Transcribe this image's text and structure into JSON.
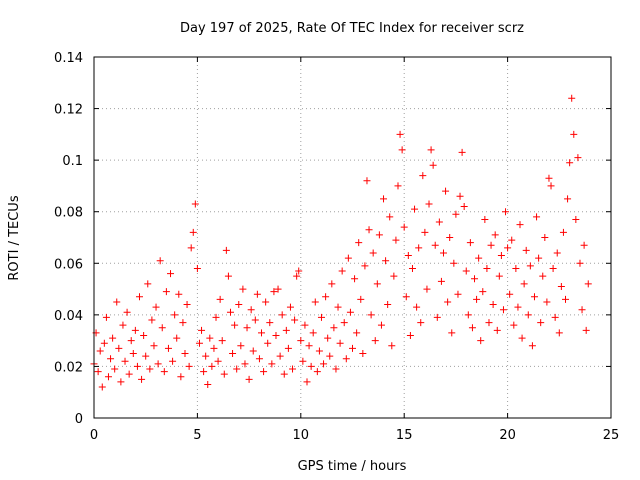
{
  "chart_data": {
    "type": "scatter",
    "title": "Day 197 of 2025, Rate Of TEC Index for receiver scrz",
    "xlabel": "GPS time / hours",
    "ylabel": "ROTI / TECUs",
    "xlim": [
      0,
      25
    ],
    "ylim": [
      0,
      0.14
    ],
    "grid": true,
    "marker": "+",
    "color": "#ff0000",
    "x_ticks": [
      {
        "value": 0,
        "label": "0"
      },
      {
        "value": 5,
        "label": "5"
      },
      {
        "value": 10,
        "label": "10"
      },
      {
        "value": 15,
        "label": "15"
      },
      {
        "value": 20,
        "label": "20"
      },
      {
        "value": 25,
        "label": "25"
      }
    ],
    "y_ticks": [
      {
        "value": 0,
        "label": "0"
      },
      {
        "value": 0.02,
        "label": "0.02"
      },
      {
        "value": 0.04,
        "label": "0.04"
      },
      {
        "value": 0.06,
        "label": "0.06"
      },
      {
        "value": 0.08,
        "label": "0.08"
      },
      {
        "value": 0.1,
        "label": "0.1"
      },
      {
        "value": 0.12,
        "label": "0.12"
      },
      {
        "value": 0.14,
        "label": "0.14"
      }
    ],
    "series": [
      {
        "name": "ROTI",
        "points": [
          [
            0.0,
            0.021
          ],
          [
            0.1,
            0.033
          ],
          [
            0.2,
            0.018
          ],
          [
            0.3,
            0.026
          ],
          [
            0.4,
            0.012
          ],
          [
            0.5,
            0.029
          ],
          [
            0.6,
            0.039
          ],
          [
            0.7,
            0.016
          ],
          [
            0.8,
            0.023
          ],
          [
            0.9,
            0.031
          ],
          [
            1.0,
            0.019
          ],
          [
            1.1,
            0.045
          ],
          [
            1.2,
            0.027
          ],
          [
            1.3,
            0.014
          ],
          [
            1.4,
            0.036
          ],
          [
            1.5,
            0.022
          ],
          [
            1.6,
            0.041
          ],
          [
            1.7,
            0.017
          ],
          [
            1.8,
            0.03
          ],
          [
            1.9,
            0.025
          ],
          [
            2.0,
            0.034
          ],
          [
            2.1,
            0.02
          ],
          [
            2.2,
            0.047
          ],
          [
            2.3,
            0.015
          ],
          [
            2.4,
            0.032
          ],
          [
            2.5,
            0.024
          ],
          [
            2.6,
            0.052
          ],
          [
            2.7,
            0.019
          ],
          [
            2.8,
            0.038
          ],
          [
            2.9,
            0.028
          ],
          [
            3.0,
            0.043
          ],
          [
            3.1,
            0.021
          ],
          [
            3.2,
            0.061
          ],
          [
            3.3,
            0.035
          ],
          [
            3.4,
            0.018
          ],
          [
            3.5,
            0.049
          ],
          [
            3.6,
            0.027
          ],
          [
            3.7,
            0.056
          ],
          [
            3.8,
            0.022
          ],
          [
            3.9,
            0.04
          ],
          [
            4.0,
            0.031
          ],
          [
            4.1,
            0.048
          ],
          [
            4.2,
            0.016
          ],
          [
            4.3,
            0.037
          ],
          [
            4.4,
            0.025
          ],
          [
            4.5,
            0.044
          ],
          [
            4.6,
            0.02
          ],
          [
            4.7,
            0.066
          ],
          [
            4.8,
            0.072
          ],
          [
            4.9,
            0.083
          ],
          [
            5.0,
            0.058
          ],
          [
            5.1,
            0.029
          ],
          [
            5.2,
            0.034
          ],
          [
            5.3,
            0.018
          ],
          [
            5.4,
            0.024
          ],
          [
            5.5,
            0.013
          ],
          [
            5.6,
            0.031
          ],
          [
            5.7,
            0.02
          ],
          [
            5.8,
            0.027
          ],
          [
            5.9,
            0.039
          ],
          [
            6.0,
            0.022
          ],
          [
            6.1,
            0.046
          ],
          [
            6.2,
            0.03
          ],
          [
            6.3,
            0.017
          ],
          [
            6.4,
            0.065
          ],
          [
            6.5,
            0.055
          ],
          [
            6.6,
            0.041
          ],
          [
            6.7,
            0.025
          ],
          [
            6.8,
            0.036
          ],
          [
            6.9,
            0.019
          ],
          [
            7.0,
            0.044
          ],
          [
            7.1,
            0.028
          ],
          [
            7.2,
            0.05
          ],
          [
            7.3,
            0.021
          ],
          [
            7.4,
            0.035
          ],
          [
            7.5,
            0.015
          ],
          [
            7.6,
            0.042
          ],
          [
            7.7,
            0.026
          ],
          [
            7.8,
            0.038
          ],
          [
            7.9,
            0.048
          ],
          [
            8.0,
            0.023
          ],
          [
            8.1,
            0.033
          ],
          [
            8.2,
            0.018
          ],
          [
            8.3,
            0.045
          ],
          [
            8.4,
            0.029
          ],
          [
            8.5,
            0.037
          ],
          [
            8.6,
            0.021
          ],
          [
            8.7,
            0.049
          ],
          [
            8.8,
            0.032
          ],
          [
            8.9,
            0.05
          ],
          [
            9.0,
            0.024
          ],
          [
            9.1,
            0.04
          ],
          [
            9.2,
            0.017
          ],
          [
            9.3,
            0.034
          ],
          [
            9.4,
            0.027
          ],
          [
            9.5,
            0.043
          ],
          [
            9.6,
            0.019
          ],
          [
            9.7,
            0.038
          ],
          [
            9.8,
            0.055
          ],
          [
            9.9,
            0.057
          ],
          [
            10.0,
            0.03
          ],
          [
            10.1,
            0.022
          ],
          [
            10.2,
            0.036
          ],
          [
            10.3,
            0.014
          ],
          [
            10.4,
            0.028
          ],
          [
            10.5,
            0.02
          ],
          [
            10.6,
            0.033
          ],
          [
            10.7,
            0.045
          ],
          [
            10.8,
            0.018
          ],
          [
            10.9,
            0.026
          ],
          [
            11.0,
            0.039
          ],
          [
            11.1,
            0.021
          ],
          [
            11.2,
            0.047
          ],
          [
            11.3,
            0.031
          ],
          [
            11.4,
            0.024
          ],
          [
            11.5,
            0.052
          ],
          [
            11.6,
            0.035
          ],
          [
            11.7,
            0.019
          ],
          [
            11.8,
            0.043
          ],
          [
            11.9,
            0.029
          ],
          [
            12.0,
            0.057
          ],
          [
            12.1,
            0.037
          ],
          [
            12.2,
            0.023
          ],
          [
            12.3,
            0.062
          ],
          [
            12.4,
            0.041
          ],
          [
            12.5,
            0.027
          ],
          [
            12.6,
            0.054
          ],
          [
            12.7,
            0.033
          ],
          [
            12.8,
            0.068
          ],
          [
            12.9,
            0.046
          ],
          [
            13.0,
            0.025
          ],
          [
            13.1,
            0.059
          ],
          [
            13.2,
            0.092
          ],
          [
            13.3,
            0.073
          ],
          [
            13.4,
            0.04
          ],
          [
            13.5,
            0.064
          ],
          [
            13.6,
            0.03
          ],
          [
            13.7,
            0.052
          ],
          [
            13.8,
            0.071
          ],
          [
            13.9,
            0.036
          ],
          [
            14.0,
            0.085
          ],
          [
            14.1,
            0.061
          ],
          [
            14.2,
            0.044
          ],
          [
            14.3,
            0.078
          ],
          [
            14.4,
            0.028
          ],
          [
            14.5,
            0.055
          ],
          [
            14.6,
            0.069
          ],
          [
            14.7,
            0.09
          ],
          [
            14.8,
            0.11
          ],
          [
            14.9,
            0.104
          ],
          [
            15.0,
            0.074
          ],
          [
            15.1,
            0.047
          ],
          [
            15.2,
            0.063
          ],
          [
            15.3,
            0.032
          ],
          [
            15.4,
            0.058
          ],
          [
            15.5,
            0.081
          ],
          [
            15.6,
            0.043
          ],
          [
            15.7,
            0.066
          ],
          [
            15.8,
            0.037
          ],
          [
            15.9,
            0.094
          ],
          [
            16.0,
            0.072
          ],
          [
            16.1,
            0.05
          ],
          [
            16.2,
            0.083
          ],
          [
            16.3,
            0.104
          ],
          [
            16.4,
            0.098
          ],
          [
            16.5,
            0.067
          ],
          [
            16.6,
            0.039
          ],
          [
            16.7,
            0.076
          ],
          [
            16.8,
            0.053
          ],
          [
            16.9,
            0.064
          ],
          [
            17.0,
            0.088
          ],
          [
            17.1,
            0.045
          ],
          [
            17.2,
            0.07
          ],
          [
            17.3,
            0.033
          ],
          [
            17.4,
            0.06
          ],
          [
            17.5,
            0.079
          ],
          [
            17.6,
            0.048
          ],
          [
            17.7,
            0.086
          ],
          [
            17.8,
            0.103
          ],
          [
            17.9,
            0.082
          ],
          [
            18.0,
            0.057
          ],
          [
            18.1,
            0.04
          ],
          [
            18.2,
            0.068
          ],
          [
            18.3,
            0.035
          ],
          [
            18.4,
            0.054
          ],
          [
            18.5,
            0.046
          ],
          [
            18.6,
            0.062
          ],
          [
            18.7,
            0.03
          ],
          [
            18.8,
            0.049
          ],
          [
            18.9,
            0.077
          ],
          [
            19.0,
            0.058
          ],
          [
            19.1,
            0.037
          ],
          [
            19.2,
            0.067
          ],
          [
            19.3,
            0.044
          ],
          [
            19.4,
            0.071
          ],
          [
            19.5,
            0.034
          ],
          [
            19.6,
            0.055
          ],
          [
            19.7,
            0.063
          ],
          [
            19.8,
            0.042
          ],
          [
            19.9,
            0.08
          ],
          [
            20.0,
            0.066
          ],
          [
            20.1,
            0.048
          ],
          [
            20.2,
            0.069
          ],
          [
            20.3,
            0.036
          ],
          [
            20.4,
            0.058
          ],
          [
            20.5,
            0.043
          ],
          [
            20.6,
            0.075
          ],
          [
            20.7,
            0.031
          ],
          [
            20.8,
            0.052
          ],
          [
            20.9,
            0.065
          ],
          [
            21.0,
            0.04
          ],
          [
            21.1,
            0.059
          ],
          [
            21.2,
            0.028
          ],
          [
            21.3,
            0.047
          ],
          [
            21.4,
            0.078
          ],
          [
            21.5,
            0.062
          ],
          [
            21.6,
            0.037
          ],
          [
            21.7,
            0.055
          ],
          [
            21.8,
            0.07
          ],
          [
            21.9,
            0.045
          ],
          [
            22.0,
            0.093
          ],
          [
            22.1,
            0.09
          ],
          [
            22.2,
            0.058
          ],
          [
            22.3,
            0.039
          ],
          [
            22.4,
            0.064
          ],
          [
            22.5,
            0.033
          ],
          [
            22.6,
            0.051
          ],
          [
            22.7,
            0.072
          ],
          [
            22.8,
            0.046
          ],
          [
            22.9,
            0.085
          ],
          [
            23.0,
            0.099
          ],
          [
            23.1,
            0.124
          ],
          [
            23.2,
            0.11
          ],
          [
            23.3,
            0.077
          ],
          [
            23.4,
            0.101
          ],
          [
            23.5,
            0.06
          ],
          [
            23.6,
            0.042
          ],
          [
            23.7,
            0.067
          ],
          [
            23.8,
            0.034
          ],
          [
            23.9,
            0.052
          ]
        ]
      }
    ]
  }
}
